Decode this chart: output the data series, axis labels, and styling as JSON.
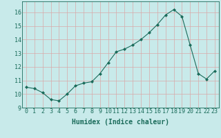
{
  "x": [
    0,
    1,
    2,
    3,
    4,
    5,
    6,
    7,
    8,
    9,
    10,
    11,
    12,
    13,
    14,
    15,
    16,
    17,
    18,
    19,
    20,
    21,
    22,
    23
  ],
  "y": [
    10.5,
    10.4,
    10.1,
    9.6,
    9.5,
    10.0,
    10.6,
    10.8,
    10.9,
    11.5,
    12.3,
    13.1,
    13.3,
    13.6,
    14.0,
    14.5,
    15.1,
    15.8,
    16.2,
    15.7,
    13.6,
    11.5,
    11.1,
    11.7
  ],
  "xlabel": "Humidex (Indice chaleur)",
  "xlim": [
    -0.5,
    23.5
  ],
  "ylim": [
    9,
    16.8
  ],
  "yticks": [
    9,
    10,
    11,
    12,
    13,
    14,
    15,
    16
  ],
  "xticks": [
    0,
    1,
    2,
    3,
    4,
    5,
    6,
    7,
    8,
    9,
    10,
    11,
    12,
    13,
    14,
    15,
    16,
    17,
    18,
    19,
    20,
    21,
    22,
    23
  ],
  "line_color": "#1a6b5a",
  "marker": "D",
  "marker_size": 2.0,
  "bg_color": "#c8eaea",
  "grid_color": "#d8a8a8",
  "axis_color": "#1a6b5a",
  "xlabel_fontsize": 7.0,
  "tick_fontsize": 6.0
}
